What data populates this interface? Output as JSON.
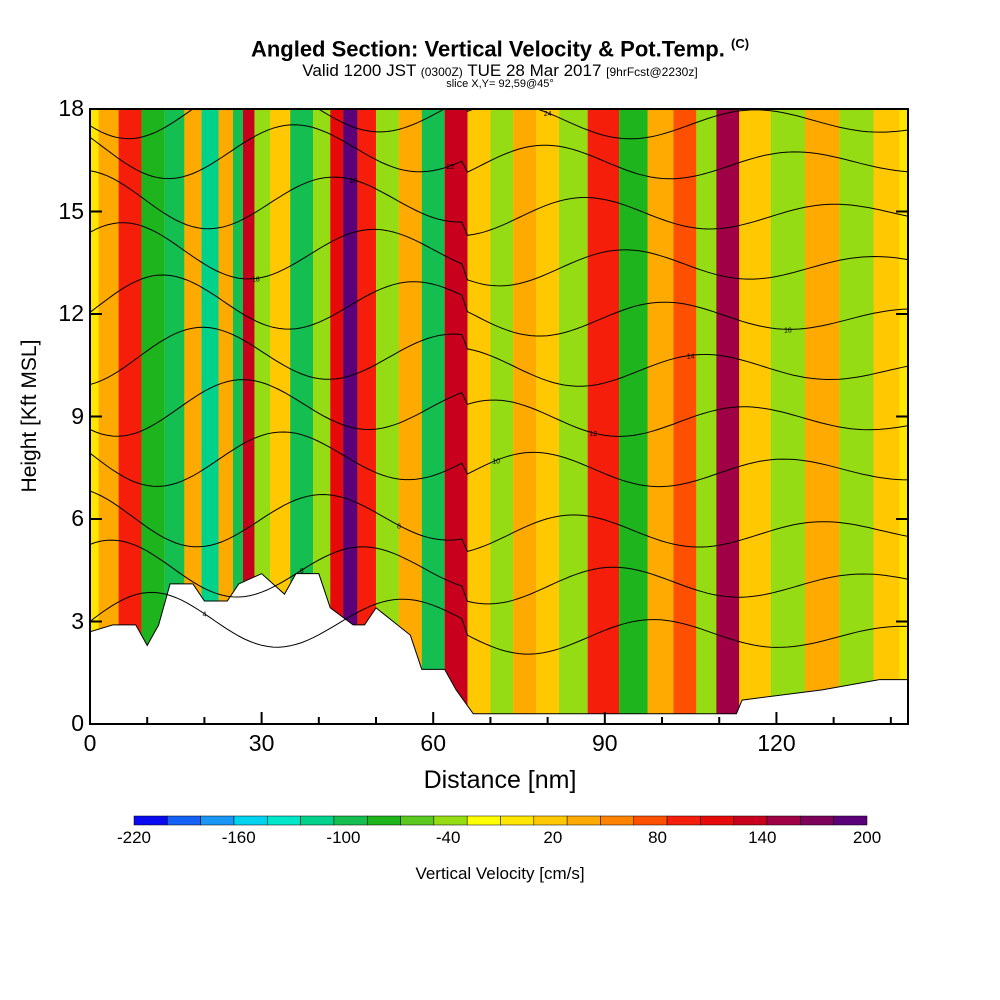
{
  "chart_data": {
    "type": "heatmap",
    "title": "Angled Section: Vertical Velocity & Pot.Temp.",
    "title_units": "(C)",
    "subtitle_valid": "Valid 1200 JST",
    "subtitle_utc": "(0300Z)",
    "subtitle_date": "TUE 28 Mar 2017",
    "subtitle_fcst": "[9hrFcst@2230z]",
    "slice": "slice X,Y= 92,59@45°",
    "xlabel": "Distance [nm]",
    "ylabel": "Height [Kft MSL]",
    "xlim": [
      0,
      143
    ],
    "ylim": [
      0,
      18
    ],
    "x_ticks": [
      0,
      30,
      60,
      90,
      120
    ],
    "y_ticks": [
      0,
      3,
      6,
      9,
      12,
      15,
      18
    ],
    "colorbar": {
      "label": "Vertical Velocity [cm/s]",
      "range": [
        -220,
        200
      ],
      "tick_labels": [
        "-220",
        "-160",
        "-100",
        "-40",
        "20",
        "80",
        "140",
        "200"
      ],
      "colors": [
        "#0a0af0",
        "#1560f5",
        "#1a96f5",
        "#00d2f0",
        "#00e6c8",
        "#00d28c",
        "#14be50",
        "#1eb41e",
        "#5ac81e",
        "#96dc14",
        "#ffff00",
        "#ffe600",
        "#ffc800",
        "#ffaa00",
        "#ff8200",
        "#ff5000",
        "#f51e0a",
        "#e60a0a",
        "#c8001e",
        "#a00046",
        "#7d005a",
        "#5a0078"
      ]
    },
    "velocity_columns": [
      {
        "x": 3,
        "v": 40
      },
      {
        "x": 7,
        "v": 100
      },
      {
        "x": 11,
        "v": -70
      },
      {
        "x": 15,
        "v": -100
      },
      {
        "x": 18,
        "v": 40
      },
      {
        "x": 21,
        "v": -110
      },
      {
        "x": 24,
        "v": 30
      },
      {
        "x": 26,
        "v": -90
      },
      {
        "x": 27.5,
        "v": 140
      },
      {
        "x": 30,
        "v": -40
      },
      {
        "x": 33,
        "v": 20
      },
      {
        "x": 37,
        "v": -100
      },
      {
        "x": 41,
        "v": -40
      },
      {
        "x": 43,
        "v": 120
      },
      {
        "x": 45.5,
        "v": 200
      },
      {
        "x": 48,
        "v": 100
      },
      {
        "x": 52,
        "v": -40
      },
      {
        "x": 56,
        "v": 40
      },
      {
        "x": 60,
        "v": -100
      },
      {
        "x": 64,
        "v": 140
      },
      {
        "x": 68,
        "v": 20
      },
      {
        "x": 72,
        "v": -40
      },
      {
        "x": 76,
        "v": 40
      },
      {
        "x": 80,
        "v": 20
      },
      {
        "x": 84,
        "v": -40
      },
      {
        "x": 90,
        "v": 100
      },
      {
        "x": 95,
        "v": -70
      },
      {
        "x": 100,
        "v": 40
      },
      {
        "x": 104,
        "v": 80
      },
      {
        "x": 108,
        "v": -40
      },
      {
        "x": 111,
        "v": 150
      },
      {
        "x": 116,
        "v": 20
      },
      {
        "x": 122,
        "v": -40
      },
      {
        "x": 128,
        "v": 40
      },
      {
        "x": 134,
        "v": -40
      },
      {
        "x": 140,
        "v": 20
      }
    ],
    "terrain": [
      {
        "x": 0,
        "h": 2.7
      },
      {
        "x": 4,
        "h": 2.9
      },
      {
        "x": 8,
        "h": 2.9
      },
      {
        "x": 10,
        "h": 2.3
      },
      {
        "x": 12,
        "h": 2.9
      },
      {
        "x": 14,
        "h": 4.1
      },
      {
        "x": 18,
        "h": 4.1
      },
      {
        "x": 20,
        "h": 3.6
      },
      {
        "x": 24,
        "h": 3.6
      },
      {
        "x": 26,
        "h": 4.1
      },
      {
        "x": 30,
        "h": 4.4
      },
      {
        "x": 34,
        "h": 3.8
      },
      {
        "x": 36,
        "h": 4.4
      },
      {
        "x": 40,
        "h": 4.4
      },
      {
        "x": 42,
        "h": 3.4
      },
      {
        "x": 46,
        "h": 2.9
      },
      {
        "x": 48,
        "h": 2.9
      },
      {
        "x": 50,
        "h": 3.4
      },
      {
        "x": 53,
        "h": 3.0
      },
      {
        "x": 56,
        "h": 2.6
      },
      {
        "x": 58,
        "h": 1.6
      },
      {
        "x": 62,
        "h": 1.6
      },
      {
        "x": 64,
        "h": 1.0
      },
      {
        "x": 67,
        "h": 0.3
      },
      {
        "x": 90,
        "h": 0.3
      },
      {
        "x": 113,
        "h": 0.3
      },
      {
        "x": 114,
        "h": 0.7
      },
      {
        "x": 128,
        "h": 1.0
      },
      {
        "x": 138,
        "h": 1.3
      },
      {
        "x": 143,
        "h": 1.3
      }
    ],
    "isentropes": [
      {
        "base": 3.0,
        "label": "4"
      },
      {
        "base": 4.5,
        "label": "6"
      },
      {
        "base": 6.0,
        "label": "8"
      },
      {
        "base": 7.8,
        "label": "10"
      },
      {
        "base": 9.3,
        "label": "12"
      },
      {
        "base": 10.8,
        "label": "14"
      },
      {
        "base": 12.3,
        "label": "16"
      },
      {
        "base": 13.8,
        "label": "18"
      },
      {
        "base": 15.3,
        "label": "20"
      },
      {
        "base": 16.8,
        "label": "22"
      },
      {
        "base": 18.0,
        "label": "24"
      }
    ]
  }
}
